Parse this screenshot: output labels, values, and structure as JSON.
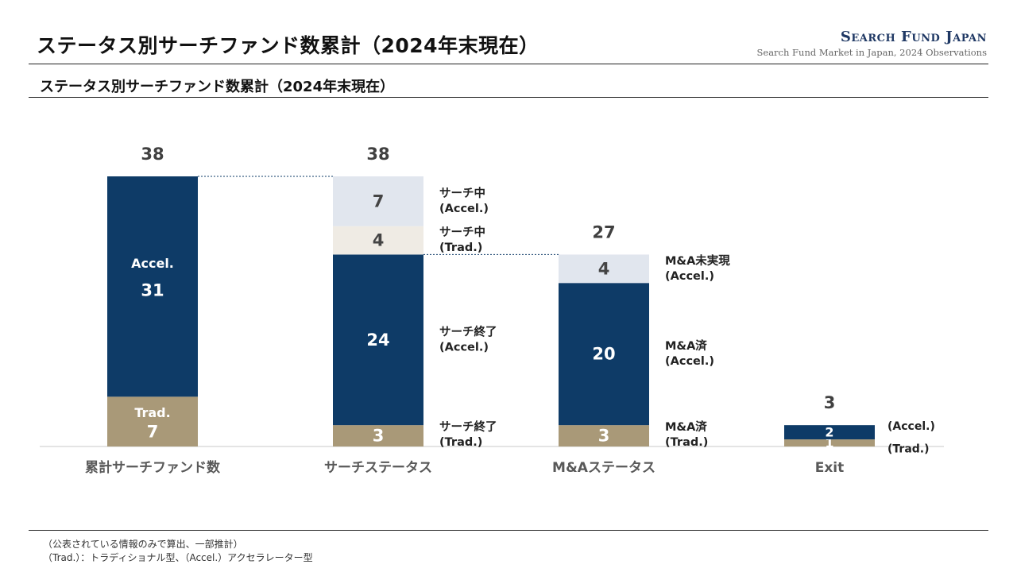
{
  "header": {
    "title": "ステータス別サーチファンド数累計（2024年末現在）",
    "brand_name": "Search Fund Japan",
    "brand_tagline": "Search Fund Market in Japan, 2024 Observations"
  },
  "subtitle": "ステータス別サーチファンド数累計（2024年末現在）",
  "chart_data": {
    "type": "bar",
    "stacked": true,
    "title": "ステータス別サーチファンド数累計（2024年末現在）",
    "categories": [
      "累計サーチファンド数",
      "サーチステータス",
      "M&Aステータス",
      "Exit"
    ],
    "totals": [
      38,
      38,
      27,
      3
    ],
    "ylim": [
      0,
      38
    ],
    "grid": false,
    "legend": "none",
    "connectors": [
      {
        "from": 0,
        "to": 1,
        "level": 38
      },
      {
        "from": 1,
        "to": 2,
        "level": 27
      }
    ],
    "columns": [
      {
        "segments": [
          {
            "value": 7,
            "label": "7",
            "inner_label": "Trad.",
            "color": "#a99978",
            "text_color": "#ffffff"
          },
          {
            "value": 31,
            "label": "31",
            "inner_label": "Accel.",
            "color": "#0e3b67",
            "text_color": "#ffffff"
          }
        ]
      },
      {
        "segments": [
          {
            "value": 3,
            "label": "3",
            "color": "#a99978",
            "text_color": "#ffffff",
            "side_label": [
              "サーチ終了",
              "(Trad.)"
            ]
          },
          {
            "value": 24,
            "label": "24",
            "color": "#0e3b67",
            "text_color": "#ffffff",
            "side_label": [
              "サーチ終了",
              "(Accel.)"
            ]
          },
          {
            "value": 4,
            "label": "4",
            "color": "#efebe4",
            "text_color": "#444444",
            "side_label": [
              "サーチ中",
              "(Trad.)"
            ]
          },
          {
            "value": 7,
            "label": "7",
            "color": "#e1e6ee",
            "text_color": "#444444",
            "side_label": [
              "サーチ中",
              "(Accel.)"
            ]
          }
        ]
      },
      {
        "segments": [
          {
            "value": 3,
            "label": "3",
            "color": "#a99978",
            "text_color": "#ffffff",
            "side_label": [
              "M&A済",
              "(Trad.)"
            ]
          },
          {
            "value": 20,
            "label": "20",
            "color": "#0e3b67",
            "text_color": "#ffffff",
            "side_label": [
              "M&A済",
              "(Accel.)"
            ]
          },
          {
            "value": 4,
            "label": "4",
            "color": "#e1e6ee",
            "text_color": "#444444",
            "side_label": [
              "M&A未実現",
              "(Accel.)"
            ]
          }
        ]
      },
      {
        "segments": [
          {
            "value": 1,
            "label": "1",
            "color": "#a99978",
            "text_color": "#ffffff",
            "side_label": [
              "(Trad.)"
            ]
          },
          {
            "value": 2,
            "label": "2",
            "color": "#0e3b67",
            "text_color": "#ffffff",
            "side_label": [
              "(Accel.)"
            ]
          }
        ]
      }
    ]
  },
  "footnotes": [
    "（公表されている情報のみで算出、一部推計）",
    "（Trad.）：トラディショナル型、（Accel.）アクセラレーター型"
  ]
}
